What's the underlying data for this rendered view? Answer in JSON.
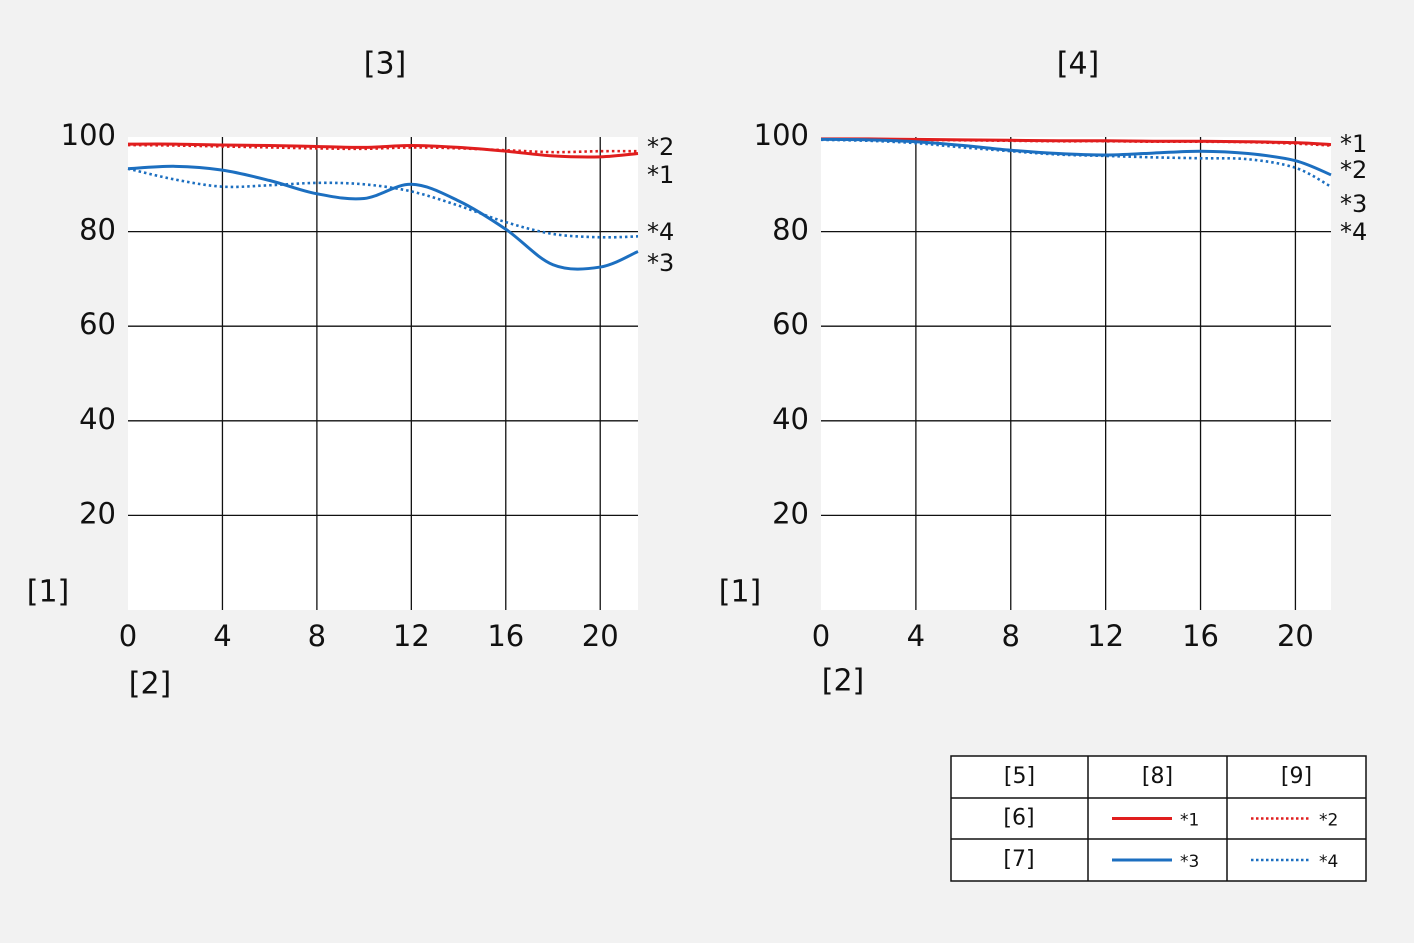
{
  "chart_data": [
    {
      "type": "line",
      "title": "[3]",
      "y_label": "[1]",
      "x_label": "[2]",
      "x": [
        0,
        2,
        4,
        6,
        8,
        10,
        12,
        14,
        16,
        18,
        20,
        21.6
      ],
      "xlim": [
        0,
        21.6
      ],
      "xticks": [
        0,
        4,
        8,
        12,
        16,
        20
      ],
      "ylim": [
        0,
        100
      ],
      "yticks": [
        20,
        40,
        60,
        80,
        100
      ],
      "grid": true,
      "series": [
        {
          "name": "*1",
          "color": "#e01e1e",
          "style": "solid",
          "values": [
            98.5,
            98.5,
            98.3,
            98.2,
            98,
            97.8,
            98.2,
            97.8,
            97,
            96,
            95.8,
            96.5
          ]
        },
        {
          "name": "*2",
          "color": "#e01e1e",
          "style": "dotted",
          "values": [
            98.3,
            98.2,
            98,
            97.8,
            97.6,
            97.5,
            97.8,
            97.6,
            97.2,
            96.8,
            97,
            97
          ]
        },
        {
          "name": "*3",
          "color": "#1c6fc0",
          "style": "solid",
          "values": [
            93.3,
            93.8,
            93,
            90.8,
            88,
            87,
            90,
            86.5,
            80.5,
            73,
            72.5,
            75.8
          ]
        },
        {
          "name": "*4",
          "color": "#1c6fc0",
          "style": "dotted",
          "values": [
            93.3,
            91,
            89.5,
            89.8,
            90.3,
            90,
            88.5,
            85.5,
            82,
            79.5,
            78.8,
            79
          ]
        }
      ]
    },
    {
      "type": "line",
      "title": "[4]",
      "y_label": "[1]",
      "x_label": "[2]",
      "x": [
        0,
        2,
        4,
        6,
        8,
        10,
        12,
        14,
        16,
        18,
        20,
        21.5
      ],
      "xlim": [
        0,
        21.5
      ],
      "xticks": [
        0,
        4,
        8,
        12,
        16,
        20
      ],
      "ylim": [
        0,
        100
      ],
      "yticks": [
        20,
        40,
        60,
        80,
        100
      ],
      "grid": true,
      "series": [
        {
          "name": "*1",
          "color": "#e01e1e",
          "style": "solid",
          "values": [
            99.6,
            99.6,
            99.5,
            99.4,
            99.3,
            99.2,
            99.2,
            99.1,
            99.1,
            99,
            98.8,
            98.4
          ]
        },
        {
          "name": "*2",
          "color": "#e01e1e",
          "style": "dotted",
          "values": [
            99.5,
            99.5,
            99.4,
            99.3,
            99.2,
            99.1,
            99.1,
            99,
            99,
            98.9,
            98.6,
            98.2
          ]
        },
        {
          "name": "*3",
          "color": "#1c6fc0",
          "style": "solid",
          "values": [
            99.5,
            99.4,
            99,
            98.2,
            97.2,
            96.5,
            96.2,
            96.6,
            97,
            96.5,
            95,
            92
          ]
        },
        {
          "name": "*4",
          "color": "#1c6fc0",
          "style": "dotted",
          "values": [
            99.4,
            99.2,
            98.7,
            97.8,
            97,
            96.3,
            96,
            95.7,
            95.5,
            95.3,
            93.5,
            89.5
          ]
        }
      ]
    }
  ],
  "legend_table": {
    "header": [
      "[5]",
      "[8]",
      "[9]"
    ],
    "rows": [
      "[6]",
      "[7]"
    ]
  }
}
